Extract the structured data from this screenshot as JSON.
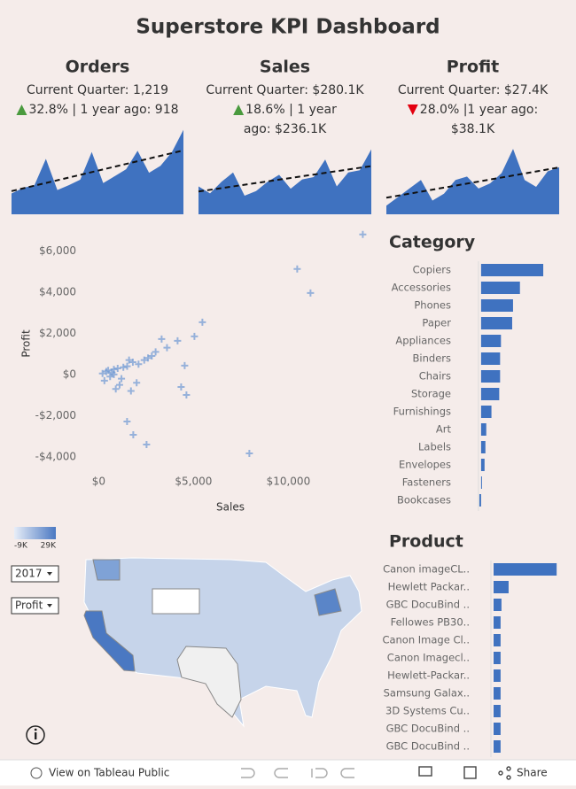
{
  "title": "Superstore KPI Dashboard",
  "chart_data": [
    {
      "type": "sparkline",
      "title": "Orders",
      "current": "Current Quarter: 1,219",
      "direction": "up",
      "change_lines": [
        "32.8% | 1 year ago: 918"
      ],
      "color": "#3f72c0",
      "values": [
        300,
        380,
        420,
        800,
        350,
        420,
        500,
        900,
        450,
        550,
        650,
        918,
        600,
        700,
        900,
        1219
      ],
      "ylim": [
        0,
        1240
      ]
    },
    {
      "type": "sparkline",
      "title": "Sales",
      "current": "Current Quarter: $280.1K",
      "direction": "up",
      "change_lines": [
        "18.6% | 1 year",
        "ago: $236.1K"
      ],
      "color": "#3f72c0",
      "values": [
        120,
        90,
        140,
        180,
        80,
        100,
        140,
        170,
        110,
        150,
        160,
        236.1,
        120,
        180,
        190,
        280.1
      ],
      "ylim": [
        0,
        370
      ]
    },
    {
      "type": "sparkline",
      "title": "Profit",
      "current": "Current Quarter: $27.4K",
      "direction": "down",
      "change_lines": [
        "28.0% |1 year ago:",
        "$38.1K"
      ],
      "color": "#3f72c0",
      "values": [
        5,
        10,
        15,
        20,
        8,
        12,
        20,
        22,
        15,
        18,
        24,
        38.1,
        20,
        16,
        25,
        27.4
      ],
      "ylim": [
        0,
        50
      ]
    },
    {
      "type": "scatter",
      "x_label": "Sales",
      "y_label": "Profit",
      "color": "#6f99d4",
      "x": [
        13926,
        10467,
        11168,
        7944,
        2523,
        1822,
        1495,
        5467,
        5047,
        4159,
        4533,
        4346,
        4626,
        3318,
        200,
        400,
        600,
        800,
        1000,
        1200,
        1500,
        1800,
        2100,
        2400,
        2800,
        300,
        700,
        1100,
        1600,
        900,
        500,
        1300,
        2000,
        2600,
        3000,
        3600,
        1700,
        800
      ],
      "values": [
        6796,
        5118,
        3957,
        -3828,
        -3398,
        -2925,
        -2280,
        2538,
        1849,
        1634,
        430,
        -602,
        -989,
        1720,
        50,
        150,
        -100,
        250,
        300,
        -200,
        400,
        600,
        500,
        700,
        900,
        -300,
        100,
        -500,
        700,
        -700,
        200,
        350,
        -400,
        800,
        1100,
        1300,
        -800,
        0
      ],
      "xlim": [
        -1000,
        14000
      ],
      "ylim": [
        -4600,
        7000
      ],
      "xticks": [
        {
          "value": 0,
          "label": "$0"
        },
        {
          "value": 5000,
          "label": "$5,000"
        },
        {
          "value": 10000,
          "label": "$10,000"
        }
      ],
      "yticks": [
        {
          "value": 6000,
          "label": "$6,000"
        },
        {
          "value": 4000,
          "label": "$4,000"
        },
        {
          "value": 2000,
          "label": "$2,000"
        },
        {
          "value": 0,
          "label": "$0"
        },
        {
          "value": -2000,
          "label": "-$2,000"
        },
        {
          "value": -4000,
          "label": "-$4,000"
        }
      ]
    },
    {
      "type": "hbar",
      "title": "Category",
      "color": "#3f72c0",
      "categories": [
        "Copiers",
        "Accessories",
        "Phones",
        "Paper",
        "Appliances",
        "Binders",
        "Chairs",
        "Storage",
        "Furnishings",
        "Art",
        "Labels",
        "Envelopes",
        "Fasteners",
        "Bookcases"
      ],
      "values": [
        18000,
        11250,
        9250,
        9000,
        5750,
        5500,
        5500,
        5250,
        3000,
        1500,
        1250,
        1000,
        250,
        -500
      ],
      "xlim": [
        -1000,
        18500
      ]
    },
    {
      "type": "hbar",
      "title": "Product",
      "color": "#3f72c0",
      "categories": [
        "Canon imageCL..",
        "Hewlett Packar..",
        "GBC DocuBind ..",
        "Fellowes PB30..",
        "Canon Image Cl..",
        "Canon Imagecl..",
        "Hewlett-Packar..",
        "Samsung Galax..",
        "3D Systems Cu..",
        "GBC DocuBind ..",
        "GBC DocuBind .."
      ],
      "values": [
        25200,
        6000,
        3150,
        2800,
        2800,
        2800,
        2800,
        2800,
        2800,
        2800,
        2800
      ],
      "xlim": [
        0,
        25500
      ]
    }
  ],
  "map": {
    "legend_min": "-9K",
    "legend_max": "29K",
    "filters": [
      "2017",
      "Profit"
    ]
  },
  "toolbar": {
    "view": "View on Tableau Public",
    "share": "Share"
  }
}
